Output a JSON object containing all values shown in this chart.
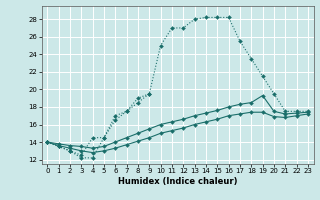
{
  "xlabel": "Humidex (Indice chaleur)",
  "bg_color": "#cce8e8",
  "grid_color": "#b8d8d8",
  "line_color": "#1a6e6a",
  "xlim": [
    -0.5,
    23.5
  ],
  "ylim": [
    11.5,
    29.5
  ],
  "xticks": [
    0,
    1,
    2,
    3,
    4,
    5,
    6,
    7,
    8,
    9,
    10,
    11,
    12,
    13,
    14,
    15,
    16,
    17,
    18,
    19,
    20,
    21,
    22,
    23
  ],
  "yticks": [
    12,
    14,
    16,
    18,
    20,
    22,
    24,
    26,
    28
  ],
  "curve1_x": [
    0,
    1,
    2,
    3,
    4,
    5,
    6,
    7,
    8,
    9,
    10,
    11,
    12,
    13,
    14,
    15,
    16,
    17,
    18,
    19,
    20,
    21,
    22,
    23
  ],
  "curve1_y": [
    14,
    13.5,
    13,
    12.5,
    14.5,
    14.5,
    17,
    17.5,
    18.5,
    19.5,
    25,
    27,
    27,
    28,
    28.2,
    28.2,
    28.2,
    25.5,
    23.5,
    21.5,
    19.5,
    17.5,
    17.5,
    17.5
  ],
  "curve2_x": [
    0,
    1,
    2,
    3,
    4,
    5,
    6,
    7,
    8,
    9
  ],
  "curve2_y": [
    14,
    13.5,
    13,
    12.2,
    12.2,
    14.5,
    16.5,
    17.5,
    19,
    19.5
  ],
  "curve3_x": [
    0,
    1,
    2,
    3,
    4,
    5,
    6,
    7,
    8,
    9,
    10,
    11,
    12,
    13,
    14,
    15,
    16,
    17,
    18,
    19,
    20,
    21,
    22,
    23
  ],
  "curve3_y": [
    14,
    13.8,
    13.6,
    13.5,
    13.3,
    13.5,
    14,
    14.5,
    15,
    15.5,
    16,
    16.3,
    16.6,
    17,
    17.3,
    17.6,
    18,
    18.3,
    18.5,
    19.3,
    17.5,
    17.2,
    17.3,
    17.4
  ],
  "curve4_x": [
    0,
    1,
    2,
    3,
    4,
    5,
    6,
    7,
    8,
    9,
    10,
    11,
    12,
    13,
    14,
    15,
    16,
    17,
    18,
    19,
    20,
    21,
    22,
    23
  ],
  "curve4_y": [
    14,
    13.6,
    13.3,
    13.0,
    12.8,
    13.0,
    13.3,
    13.7,
    14.1,
    14.5,
    15,
    15.3,
    15.6,
    16,
    16.3,
    16.6,
    17,
    17.2,
    17.4,
    17.4,
    16.9,
    16.8,
    17.0,
    17.2
  ]
}
